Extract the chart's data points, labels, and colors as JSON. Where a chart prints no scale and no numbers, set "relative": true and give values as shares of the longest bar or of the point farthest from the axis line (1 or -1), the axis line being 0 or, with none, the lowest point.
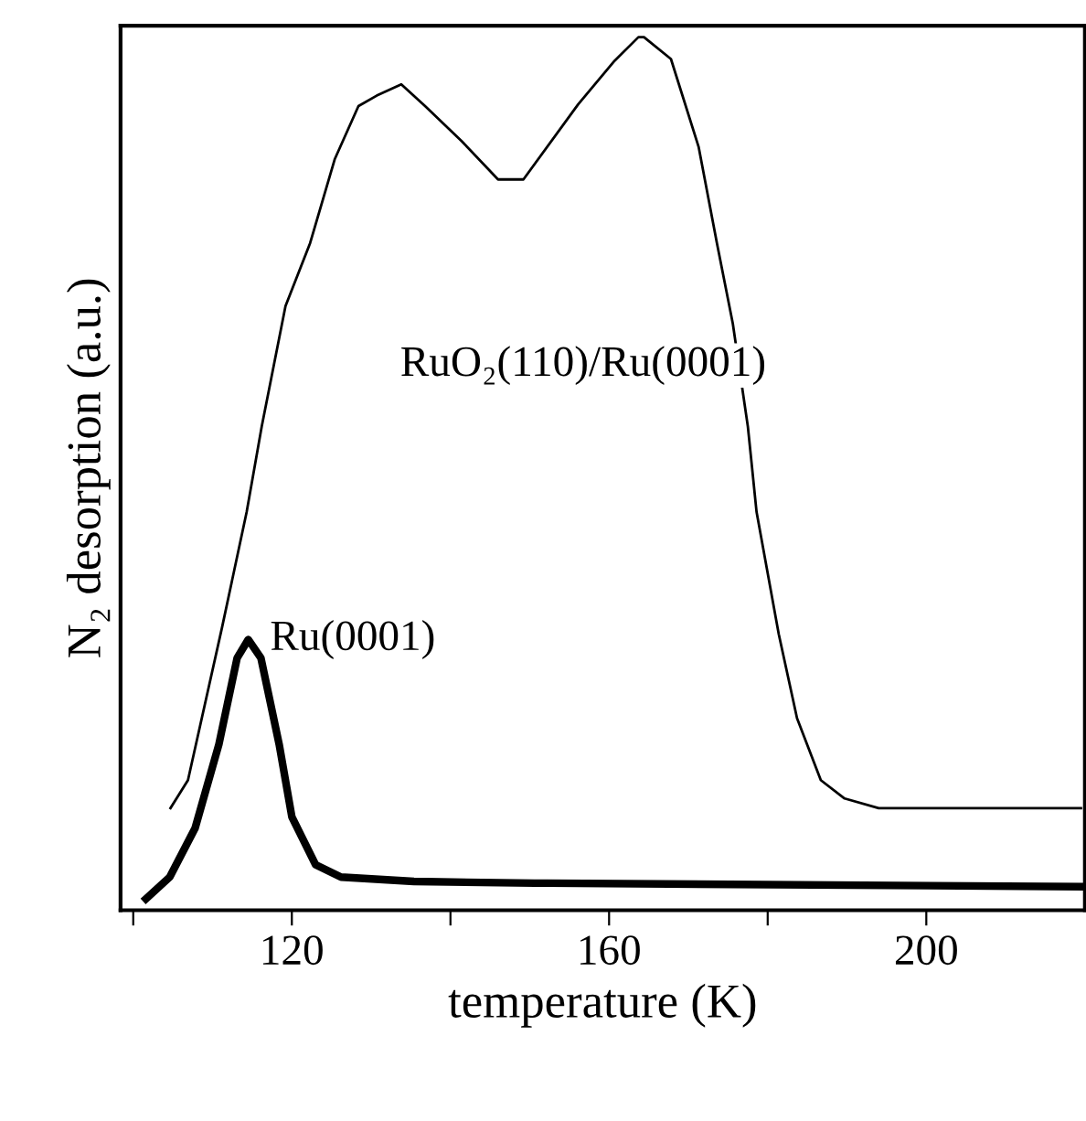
{
  "chart_data": {
    "type": "line",
    "relative": true,
    "xlabel": "temperature (K)",
    "ylabel": "N₂ desorption (a.u.)",
    "xlim": [
      98.4,
      220
    ],
    "xticks": [
      {
        "value": 100,
        "label": null
      },
      120,
      {
        "value": 140,
        "label": null
      },
      160,
      {
        "value": 180,
        "label": null
      },
      200
    ],
    "tick_labels": "x",
    "grid": false,
    "legend": false,
    "marker": "none",
    "line_style": "solid",
    "series": [
      {
        "name": "RuO₂(110)/Ru(0001)",
        "color": "#000000",
        "x": [
          104.7,
          106.9,
          111.2,
          114.3,
          116.2,
          119.2,
          122.3,
          125.4,
          128.4,
          130.7,
          133.8,
          136.8,
          141.4,
          146.0,
          149.2,
          156.1,
          160.7,
          163.7,
          164.4,
          167.8,
          171.3,
          173.6,
          175.6,
          177.5,
          178.6,
          181.4,
          183.7,
          186.7,
          189.7,
          194.0,
          219.5
        ],
        "values": [
          0.117,
          0.149,
          0.324,
          0.456,
          0.554,
          0.692,
          0.764,
          0.86,
          0.921,
          0.933,
          0.946,
          0.921,
          0.881,
          0.837,
          0.837,
          0.923,
          0.973,
          1.0,
          1.0,
          0.975,
          0.874,
          0.764,
          0.672,
          0.554,
          0.456,
          0.316,
          0.22,
          0.149,
          0.128,
          0.117,
          0.117
        ]
      },
      {
        "name": "Ru(0001)",
        "color": "#000000",
        "x": [
          101.6,
          104.6,
          107.8,
          110.8,
          113.1,
          114.5,
          116.1,
          118.4,
          120.0,
          123.0,
          126.2,
          135.4,
          150.6,
          152.2,
          219.5
        ],
        "values": [
          0.013,
          0.038,
          0.094,
          0.19,
          0.289,
          0.31,
          0.289,
          0.19,
          0.107,
          0.052,
          0.038,
          0.033,
          0.031,
          0.031,
          0.027
        ]
      }
    ]
  }
}
